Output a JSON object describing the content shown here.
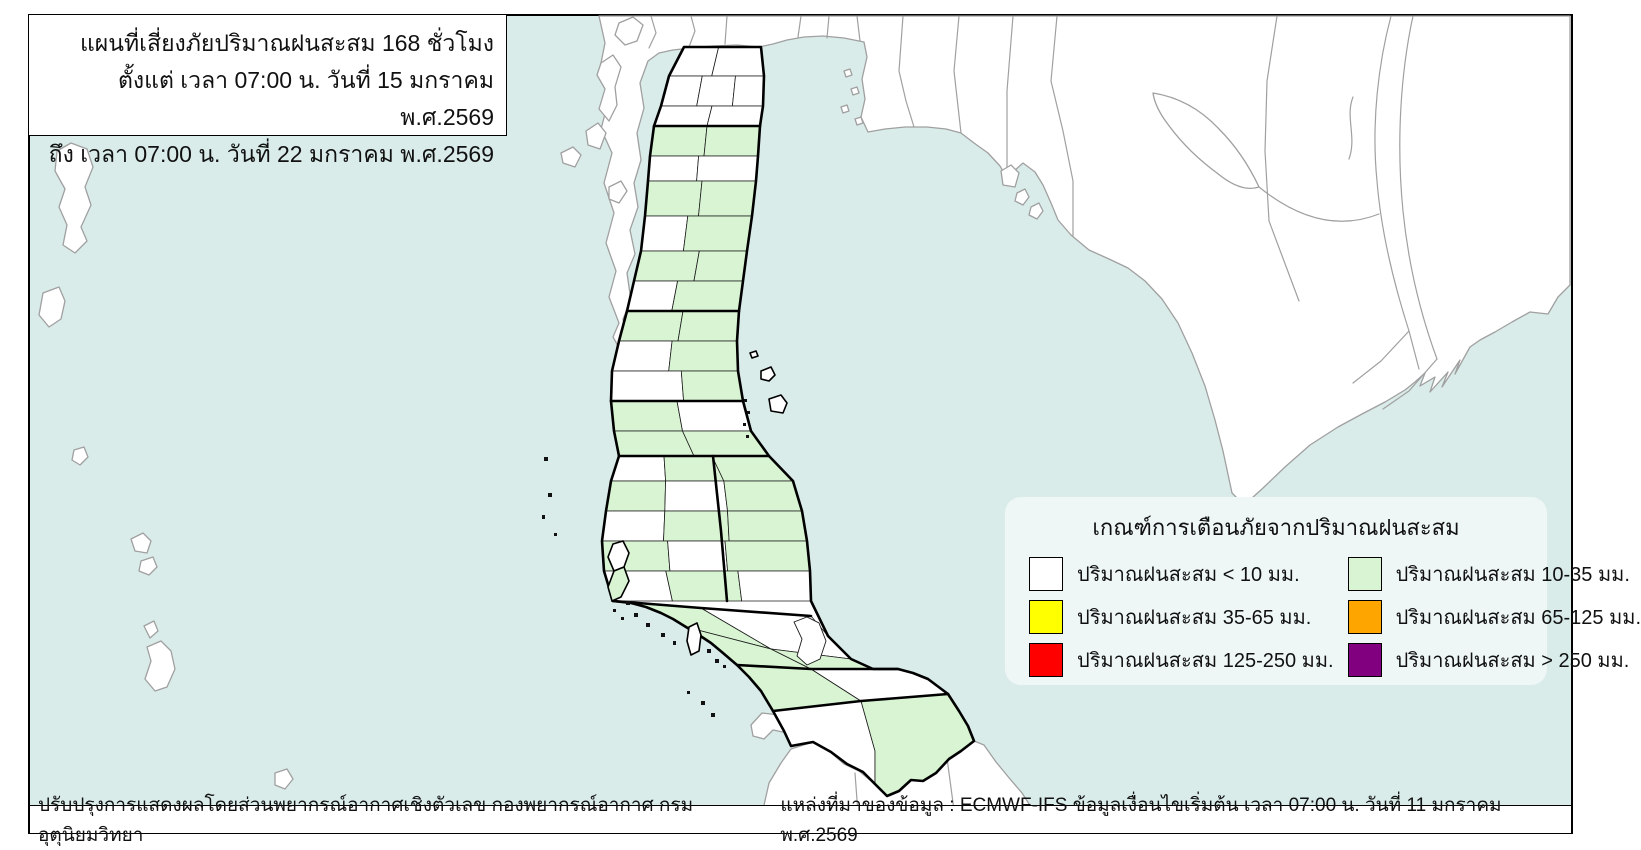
{
  "title": {
    "line1": "แผนที่เสี่ยงภัยปริมาณฝนสะสม 168 ชั่วโมง",
    "line2": "ตั้งแต่ เวลา 07:00 น. วันที่ 15 มกราคม พ.ศ.2569",
    "line3": "ถึง เวลา 07:00 น. วันที่ 22 มกราคม พ.ศ.2569"
  },
  "legend": {
    "title": "เกณฑ์การเตือนภัยจากปริมาณฝนสะสม",
    "items": [
      {
        "label": "ปริมาณฝนสะสม < 10 มม.",
        "color": "#ffffff"
      },
      {
        "label": "ปริมาณฝนสะสม 10-35 มม.",
        "color": "#d8f4d2"
      },
      {
        "label": "ปริมาณฝนสะสม 35-65 มม.",
        "color": "#ffff00"
      },
      {
        "label": "ปริมาณฝนสะสม 65-125 มม.",
        "color": "#ffa500"
      },
      {
        "label": "ปริมาณฝนสะสม 125-250 มม.",
        "color": "#ff0000"
      },
      {
        "label": "ปริมาณฝนสะสม > 250 มม.",
        "color": "#800080"
      }
    ]
  },
  "footer": {
    "left": "ปรับปรุงการแสดงผลโดยส่วนพยากรณ์อากาศเชิงตัวเลข กองพยากรณ์อากาศ กรมอุตุนิยมวิทยา",
    "right": "แหล่งที่มาของข้อมูล : ECMWF-IFS ข้อมูลเงื่อนไขเริ่มต้น เวลา 07:00 น. วันที่ 11 มกราคม พ.ศ.2569"
  },
  "map": {
    "colors": {
      "sea": "#d9ece9",
      "land": "#ffffff",
      "foreign_border": "#a0a0a0",
      "district_border": "#1b1b1b",
      "province_border": "#000000",
      "rain_lt_10": "#ffffff",
      "rain_10_35": "#d8f4d2"
    }
  }
}
